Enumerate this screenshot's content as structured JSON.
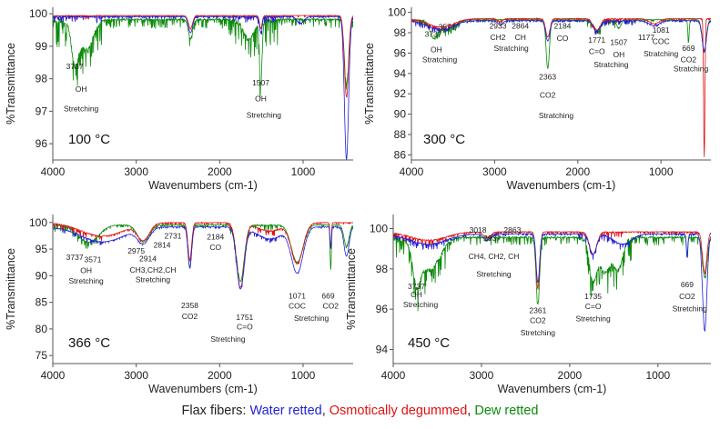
{
  "legend": {
    "prefix": "Flax fibers: ",
    "items": [
      {
        "label": "Water retted",
        "color": "#1f1fd6"
      },
      {
        "label": "Osmotically degummed",
        "color": "#e01010"
      },
      {
        "label": "Dew retted",
        "color": "#0a8a0a"
      }
    ],
    "separator": ", "
  },
  "chart_data": [
    {
      "type": "line",
      "title": "",
      "temperature_label": "100 °C",
      "xlabel": "Wavenumbers (cm-1)",
      "ylabel": "%Transmittance",
      "xlim": [
        4000,
        400
      ],
      "ylim": [
        95.5,
        100.2
      ],
      "xticks": [
        4000,
        3000,
        2000,
        1000
      ],
      "yticks": [
        96,
        97,
        98,
        99,
        100
      ],
      "grid": false,
      "series": [
        {
          "name": "Water retted",
          "color": "#1f1fd6",
          "baseline": 99.92,
          "noise": 0.12,
          "dips": [
            [
              2350,
              0.5,
              25
            ],
            [
              1507,
              0.5,
              15
            ],
            [
              1030,
              0.2,
              40
            ],
            [
              480,
              4.4,
              25
            ]
          ]
        },
        {
          "name": "Osmotically degummed",
          "color": "#e01010",
          "baseline": 99.95,
          "noise": 0.08,
          "dips": [
            [
              2350,
              0.4,
              25
            ],
            [
              1507,
              0.4,
              15
            ],
            [
              480,
              2.5,
              25
            ]
          ]
        },
        {
          "name": "Dew retted",
          "color": "#0a8a0a",
          "baseline": 99.85,
          "noise": 0.55,
          "dips": [
            [
              3737,
              1.2,
              40
            ],
            [
              3600,
              0.9,
              80
            ],
            [
              2350,
              0.6,
              25
            ],
            [
              1507,
              1.9,
              15
            ],
            [
              1650,
              0.6,
              60
            ],
            [
              480,
              2.0,
              25
            ]
          ]
        }
      ],
      "annotations": [
        {
          "text": "3737",
          "x": 3737,
          "y": 98.3
        },
        {
          "text": "OH",
          "x": 3660,
          "y": 97.6
        },
        {
          "text": "Stretching",
          "x": 3660,
          "y": 97.0
        },
        {
          "text": "1507",
          "x": 1507,
          "y": 97.8
        },
        {
          "text": "OH",
          "x": 1507,
          "y": 97.3
        },
        {
          "text": "Stretching",
          "x": 1470,
          "y": 96.8
        }
      ]
    },
    {
      "type": "line",
      "title": "",
      "temperature_label": "300 °C",
      "xlabel": "Wavenumbers (cm-1)",
      "ylabel": "%Transmittance",
      "xlim": [
        4000,
        400
      ],
      "ylim": [
        85.5,
        100.5
      ],
      "xticks": [
        4000,
        3000,
        2000,
        1000
      ],
      "yticks": [
        86,
        88,
        90,
        92,
        94,
        96,
        98,
        100
      ],
      "grid": false,
      "series": [
        {
          "name": "Water retted",
          "color": "#1f1fd6",
          "baseline": 99.2,
          "noise": 0.3,
          "dips": [
            [
              3650,
              0.8,
              150
            ],
            [
              2933,
              0.4,
              30
            ],
            [
              2361,
              2.0,
              25
            ],
            [
              1771,
              1.0,
              40
            ],
            [
              1081,
              0.5,
              60
            ],
            [
              480,
              3.0,
              25
            ]
          ]
        },
        {
          "name": "Osmotically degummed",
          "color": "#e01010",
          "baseline": 99.4,
          "noise": 0.3,
          "dips": [
            [
              3650,
              0.8,
              150
            ],
            [
              2933,
              0.3,
              30
            ],
            [
              2361,
              1.8,
              25
            ],
            [
              1771,
              1.1,
              40
            ],
            [
              1081,
              0.5,
              60
            ],
            [
              480,
              13.5,
              8
            ]
          ]
        },
        {
          "name": "Dew retted",
          "color": "#0a8a0a",
          "baseline": 99.3,
          "noise": 0.45,
          "dips": [
            [
              3737,
              1.4,
              40
            ],
            [
              3600,
              1.0,
              100
            ],
            [
              2361,
              4.8,
              20
            ],
            [
              1771,
              1.2,
              40
            ],
            [
              1507,
              0.8,
              25
            ],
            [
              669,
              2.2,
              8
            ],
            [
              480,
              3.0,
              25
            ]
          ]
        }
      ],
      "annotations": [
        {
          "text": "3737",
          "x": 3737,
          "y": 97.6
        },
        {
          "text": "3571",
          "x": 3571,
          "y": 98.3
        },
        {
          "text": "OH",
          "x": 3700,
          "y": 96.1
        },
        {
          "text": "Stratching",
          "x": 3660,
          "y": 95.1
        },
        {
          "text": "2933",
          "x": 2960,
          "y": 98.4
        },
        {
          "text": "2864",
          "x": 2690,
          "y": 98.4
        },
        {
          "text": "CH2",
          "x": 2960,
          "y": 97.3
        },
        {
          "text": "CH",
          "x": 2690,
          "y": 97.3
        },
        {
          "text": "Stratching",
          "x": 2800,
          "y": 96.2
        },
        {
          "text": "2184",
          "x": 2184,
          "y": 98.4
        },
        {
          "text": "CO",
          "x": 2184,
          "y": 97.2
        },
        {
          "text": "2363",
          "x": 2363,
          "y": 93.4
        },
        {
          "text": "CO2",
          "x": 2363,
          "y": 91.6
        },
        {
          "text": "Stratching",
          "x": 2260,
          "y": 89.6
        },
        {
          "text": "1771",
          "x": 1771,
          "y": 97.0
        },
        {
          "text": "1507",
          "x": 1507,
          "y": 96.8
        },
        {
          "text": "C=O",
          "x": 1771,
          "y": 95.9
        },
        {
          "text": "OH",
          "x": 1507,
          "y": 95.6
        },
        {
          "text": "Stratching",
          "x": 1600,
          "y": 94.6
        },
        {
          "text": "1177",
          "x": 1177,
          "y": 97.3
        },
        {
          "text": "1081",
          "x": 1000,
          "y": 98.0
        },
        {
          "text": "COC",
          "x": 1000,
          "y": 96.9
        },
        {
          "text": "Stratching",
          "x": 1000,
          "y": 95.7
        },
        {
          "text": "669",
          "x": 669,
          "y": 96.2
        },
        {
          "text": "CO2",
          "x": 669,
          "y": 95.1
        },
        {
          "text": "Stratching",
          "x": 640,
          "y": 94.2
        }
      ]
    },
    {
      "type": "line",
      "title": "",
      "temperature_label": "366 °C",
      "xlabel": "Wavenumbers (cm-1)",
      "ylabel": "%Transmittance",
      "xlim": [
        4000,
        400
      ],
      "ylim": [
        73.5,
        101.5
      ],
      "xticks": [
        4000,
        3000,
        2000,
        1000
      ],
      "yticks": [
        75,
        80,
        85,
        90,
        95,
        100
      ],
      "grid": false,
      "series": [
        {
          "name": "Water retted",
          "color": "#1f1fd6",
          "baseline": 99.2,
          "noise": 0.5,
          "dips": [
            [
              3400,
              2.8,
              250
            ],
            [
              2914,
              2.8,
              70
            ],
            [
              2358,
              7.5,
              22
            ],
            [
              1751,
              11.5,
              45
            ],
            [
              1400,
              2.2,
              150
            ],
            [
              1071,
              8.5,
              70
            ],
            [
              669,
              4.0,
              8
            ],
            [
              480,
              5.5,
              30
            ]
          ]
        },
        {
          "name": "Osmotically degummed",
          "color": "#e01010",
          "baseline": 100.0,
          "noise": 0.7,
          "dips": [
            [
              3400,
              2.5,
              250
            ],
            [
              2914,
              3.0,
              70
            ],
            [
              2358,
              7.0,
              22
            ],
            [
              1751,
              12.0,
              45
            ],
            [
              1400,
              1.5,
              150
            ],
            [
              1071,
              7.5,
              70
            ],
            [
              669,
              5.0,
              8
            ]
          ]
        },
        {
          "name": "Dew retted",
          "color": "#0a8a0a",
          "baseline": 99.6,
          "noise": 0.9,
          "dips": [
            [
              3571,
              3.2,
              120
            ],
            [
              2914,
              3.2,
              70
            ],
            [
              2358,
              8.0,
              22
            ],
            [
              1751,
              10.5,
              45
            ],
            [
              1071,
              7.0,
              70
            ],
            [
              669,
              8.5,
              8
            ],
            [
              480,
              4.0,
              30
            ]
          ]
        }
      ],
      "annotations": [
        {
          "text": "3737",
          "x": 3737,
          "y": 93.0
        },
        {
          "text": "3571",
          "x": 3520,
          "y": 92.5
        },
        {
          "text": "OH",
          "x": 3600,
          "y": 90.5
        },
        {
          "text": "Stretching",
          "x": 3600,
          "y": 88.5
        },
        {
          "text": "2975",
          "x": 3000,
          "y": 94.2
        },
        {
          "text": "2914",
          "x": 2860,
          "y": 92.7
        },
        {
          "text": "2814",
          "x": 2690,
          "y": 95.3
        },
        {
          "text": "2731",
          "x": 2560,
          "y": 97.0
        },
        {
          "text": "CH3,CH2,CH",
          "x": 2800,
          "y": 90.6
        },
        {
          "text": "Stretching",
          "x": 2800,
          "y": 88.8
        },
        {
          "text": "2184",
          "x": 2050,
          "y": 96.8
        },
        {
          "text": "CO",
          "x": 2050,
          "y": 94.8
        },
        {
          "text": "2358",
          "x": 2358,
          "y": 83.9
        },
        {
          "text": "CO2",
          "x": 2358,
          "y": 81.9
        },
        {
          "text": "1751",
          "x": 1700,
          "y": 81.7
        },
        {
          "text": "C=O",
          "x": 1700,
          "y": 79.9
        },
        {
          "text": "Stretching",
          "x": 1900,
          "y": 77.6
        },
        {
          "text": "1071",
          "x": 1071,
          "y": 85.7
        },
        {
          "text": "COC",
          "x": 1071,
          "y": 83.8
        },
        {
          "text": "669",
          "x": 700,
          "y": 85.7
        },
        {
          "text": "CO2",
          "x": 670,
          "y": 83.8
        },
        {
          "text": "Stretching",
          "x": 900,
          "y": 81.5
        }
      ]
    },
    {
      "type": "line",
      "title": "",
      "temperature_label": "450 °C",
      "xlabel": "Wavenumbers (cm-1)",
      "ylabel": "%Transmittance",
      "xlim": [
        4000,
        400
      ],
      "ylim": [
        93.3,
        100.7
      ],
      "xticks": [
        4000,
        3000,
        2000,
        1000
      ],
      "yticks": [
        94,
        96,
        98,
        100
      ],
      "grid": false,
      "series": [
        {
          "name": "Water retted",
          "color": "#1f1fd6",
          "baseline": 99.75,
          "noise": 0.2,
          "dips": [
            [
              3600,
              0.5,
              200
            ],
            [
              2937,
              0.3,
              40
            ],
            [
              2361,
              2.4,
              20
            ],
            [
              1735,
              1.0,
              40
            ],
            [
              1400,
              0.5,
              100
            ],
            [
              669,
              1.2,
              8
            ],
            [
              470,
              4.8,
              25
            ]
          ]
        },
        {
          "name": "Osmotically degummed",
          "color": "#e01010",
          "baseline": 99.85,
          "noise": 0.2,
          "dips": [
            [
              3600,
              0.4,
              200
            ],
            [
              2937,
              0.3,
              40
            ],
            [
              2361,
              2.8,
              20
            ],
            [
              1735,
              1.1,
              40
            ],
            [
              470,
              2.0,
              25
            ]
          ]
        },
        {
          "name": "Dew retted",
          "color": "#0a8a0a",
          "baseline": 99.6,
          "noise": 0.8,
          "dips": [
            [
              3737,
              1.6,
              40
            ],
            [
              3600,
              1.6,
              120
            ],
            [
              2361,
              3.3,
              20
            ],
            [
              1735,
              2.0,
              40
            ],
            [
              1600,
              1.7,
              60
            ],
            [
              1450,
              1.5,
              50
            ],
            [
              669,
              0.8,
              8
            ],
            [
              470,
              2.0,
              25
            ]
          ]
        }
      ],
      "annotations": [
        {
          "text": "3737",
          "x": 3737,
          "y": 97.0
        },
        {
          "text": "OH",
          "x": 3737,
          "y": 96.6
        },
        {
          "text": "Stretching",
          "x": 3690,
          "y": 96.1
        },
        {
          "text": "3018",
          "x": 3040,
          "y": 99.8
        },
        {
          "text": "2937",
          "x": 2880,
          "y": 99.4
        },
        {
          "text": "2863",
          "x": 2650,
          "y": 99.8
        },
        {
          "text": "CH4, CH2, CH",
          "x": 2860,
          "y": 98.5
        },
        {
          "text": "Stretching",
          "x": 2860,
          "y": 97.6
        },
        {
          "text": "2361",
          "x": 2361,
          "y": 95.8
        },
        {
          "text": "CO2",
          "x": 2361,
          "y": 95.3
        },
        {
          "text": "Stretching",
          "x": 2361,
          "y": 94.7
        },
        {
          "text": "1735",
          "x": 1735,
          "y": 96.5
        },
        {
          "text": "C=O",
          "x": 1735,
          "y": 96.0
        },
        {
          "text": "Stretching",
          "x": 1735,
          "y": 95.4
        },
        {
          "text": "669",
          "x": 669,
          "y": 97.1
        },
        {
          "text": "CO2",
          "x": 669,
          "y": 96.5
        },
        {
          "text": "Stretching",
          "x": 640,
          "y": 95.9
        }
      ]
    }
  ]
}
